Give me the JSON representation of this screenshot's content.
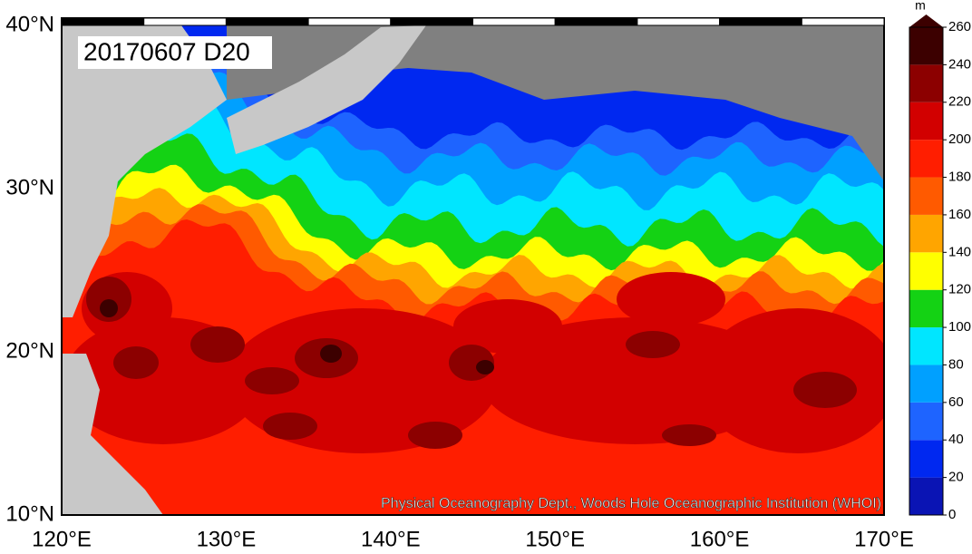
{
  "title": "20170607 D20",
  "credit": "Physical Oceanography Dept., Woods Hole Oceanographic Institution (WHOI)",
  "longitude_ticks": [
    {
      "value": 120,
      "label": "120°E"
    },
    {
      "value": 130,
      "label": "130°E"
    },
    {
      "value": 140,
      "label": "140°E"
    },
    {
      "value": 150,
      "label": "150°E"
    },
    {
      "value": 160,
      "label": "160°E"
    },
    {
      "value": 170,
      "label": "170°E"
    }
  ],
  "latitude_ticks": [
    {
      "value": 10,
      "label": "10°N"
    },
    {
      "value": 20,
      "label": "20°N"
    },
    {
      "value": 30,
      "label": "30°N"
    },
    {
      "value": 40,
      "label": "40°N"
    }
  ],
  "colorbar": {
    "unit": "m",
    "ticks": [
      0,
      20,
      40,
      60,
      80,
      100,
      120,
      140,
      160,
      180,
      200,
      220,
      240,
      260
    ],
    "colors": [
      "#0a14b4",
      "#0028f0",
      "#1e64ff",
      "#00a0ff",
      "#00e6ff",
      "#14d214",
      "#ffff00",
      "#ffa500",
      "#ff5a00",
      "#ff1e00",
      "#d20000",
      "#8c0000",
      "#3c0000"
    ]
  }
}
